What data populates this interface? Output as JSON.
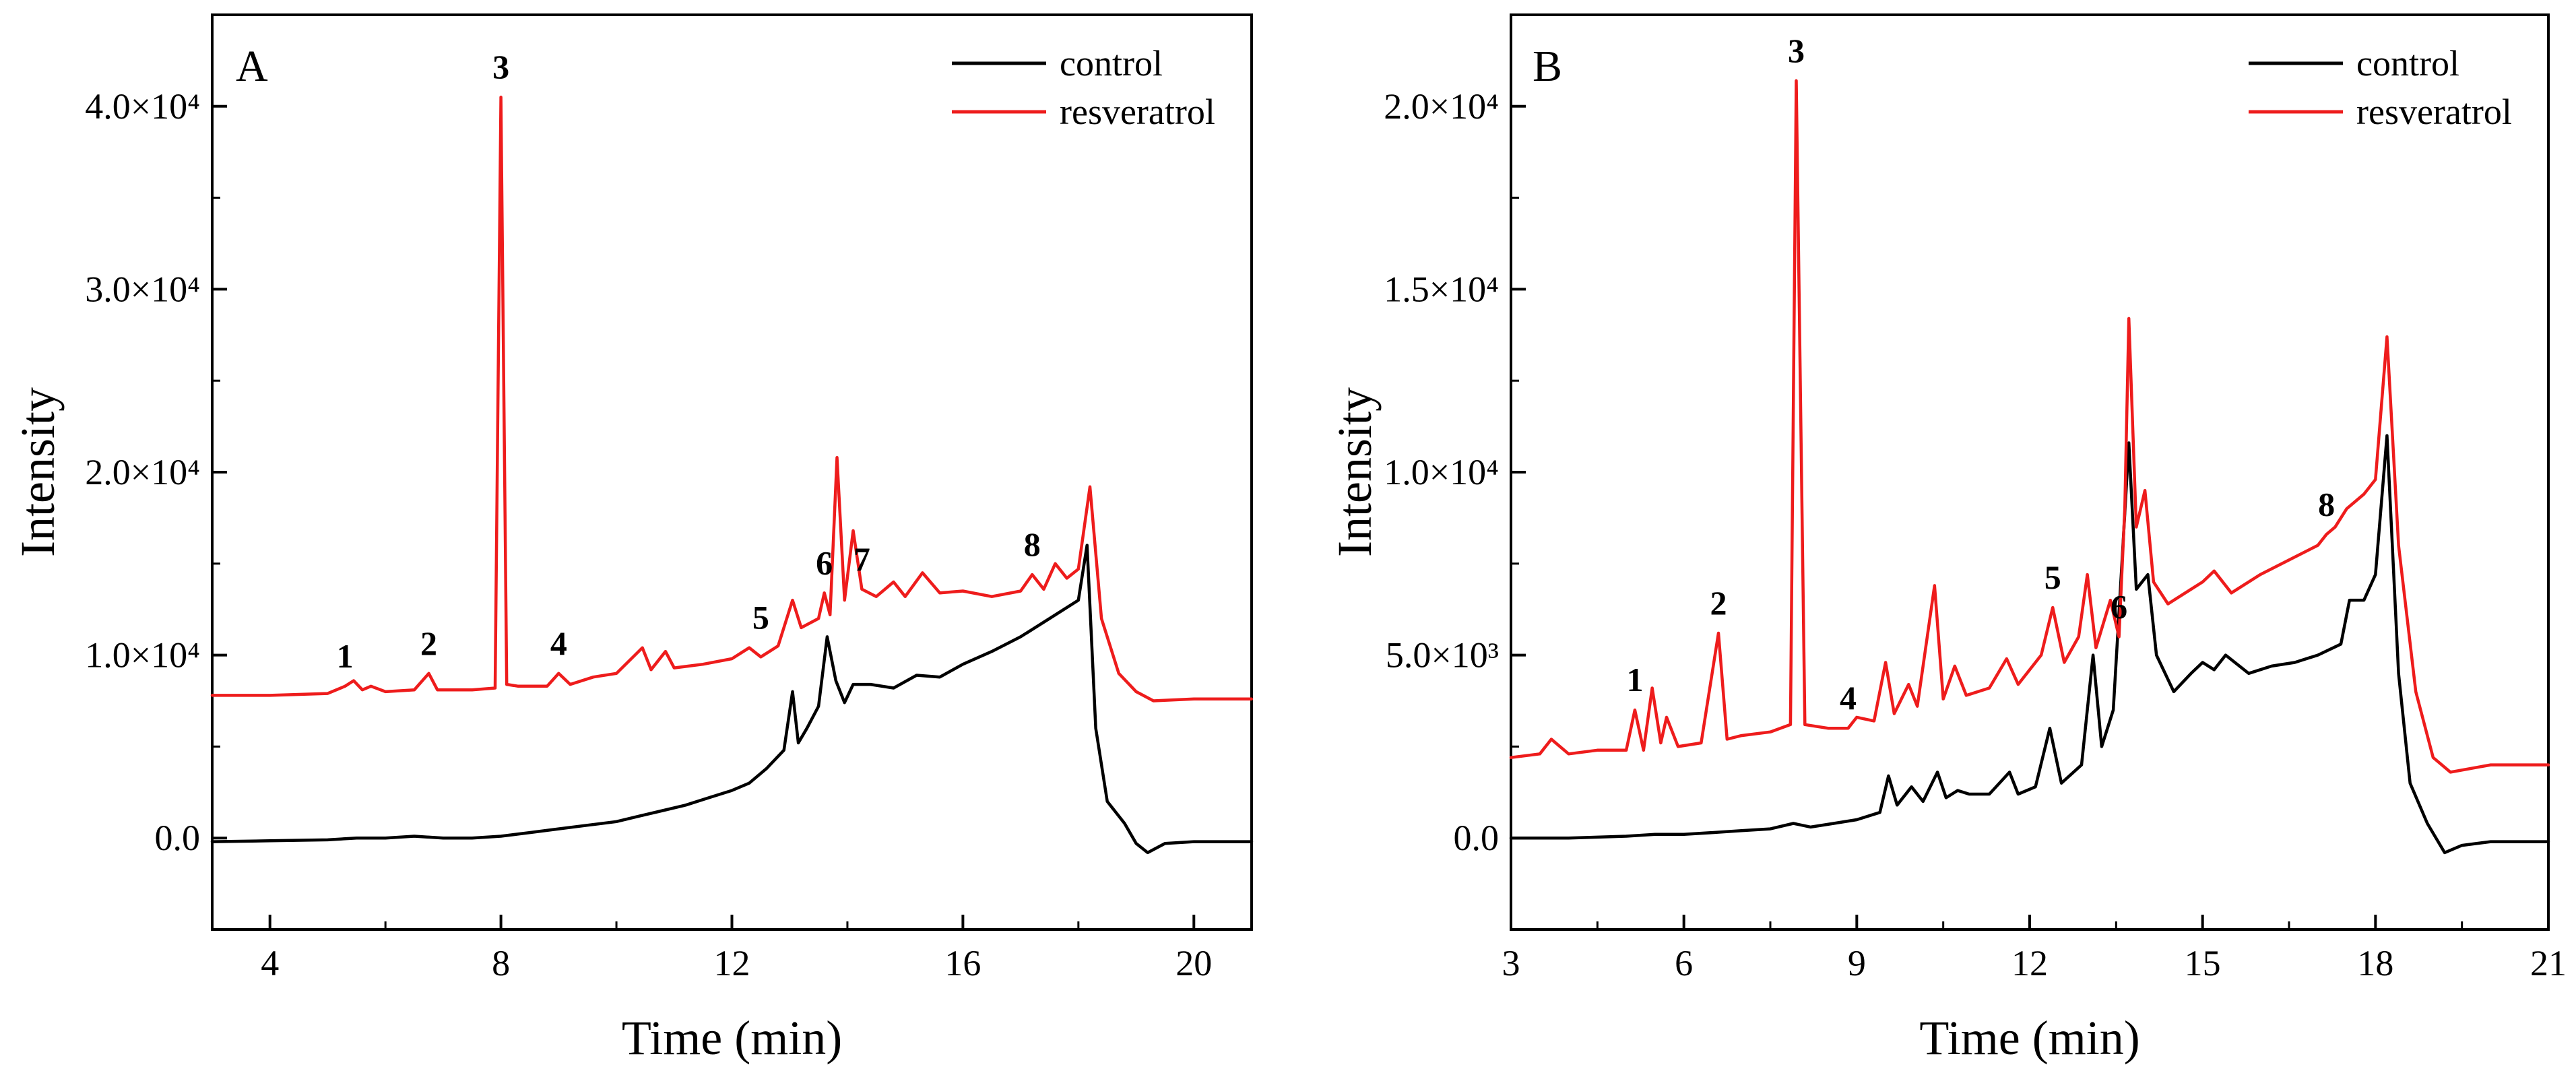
{
  "chart_data": [
    {
      "type": "line",
      "panel_label": "A",
      "xlabel": "Time (min)",
      "ylabel": "Intensity",
      "xlim": [
        3,
        21
      ],
      "ylim": [
        -5000,
        45000
      ],
      "x_ticks": [
        4,
        8,
        12,
        16,
        20
      ],
      "x_tick_labels": [
        "4",
        "8",
        "12",
        "16",
        "20"
      ],
      "y_ticks": [
        0,
        10000,
        20000,
        30000,
        40000
      ],
      "y_tick_labels": [
        "0.0",
        "1.0×10⁴",
        "2.0×10⁴",
        "3.0×10⁴",
        "4.0×10⁴"
      ],
      "legend": {
        "position": "top-right",
        "entries": [
          "control",
          "resveratrol"
        ]
      },
      "series": [
        {
          "name": "control",
          "color": "#000000",
          "x": [
            3,
            4,
            5,
            5.5,
            6,
            6.5,
            7,
            7.5,
            8,
            8.5,
            9,
            9.5,
            10,
            10.4,
            10.8,
            11.2,
            11.6,
            12,
            12.3,
            12.6,
            12.9,
            13.05,
            13.15,
            13.3,
            13.5,
            13.65,
            13.8,
            13.95,
            14.1,
            14.4,
            14.8,
            15.2,
            15.6,
            16,
            16.5,
            17,
            17.5,
            18,
            18.15,
            18.3,
            18.5,
            18.8,
            19,
            19.2,
            19.5,
            20,
            21
          ],
          "y": [
            -200,
            -150,
            -100,
            0,
            0,
            100,
            0,
            0,
            100,
            300,
            500,
            700,
            900,
            1200,
            1500,
            1800,
            2200,
            2600,
            3000,
            3800,
            4800,
            8000,
            5200,
            6000,
            7200,
            11000,
            8600,
            7400,
            8400,
            8400,
            8200,
            8900,
            8800,
            9500,
            10200,
            11000,
            12000,
            13000,
            16000,
            6000,
            2000,
            800,
            -300,
            -800,
            -300,
            -200,
            -200
          ]
        },
        {
          "name": "resveratrol",
          "color": "#ee1c1c",
          "x": [
            3,
            4,
            5,
            5.3,
            5.45,
            5.6,
            5.75,
            6,
            6.5,
            6.75,
            6.9,
            7.5,
            7.9,
            8.0,
            8.1,
            8.3,
            8.8,
            9.0,
            9.2,
            9.6,
            10,
            10.45,
            10.6,
            10.85,
            11,
            11.5,
            12,
            12.3,
            12.5,
            12.8,
            13.05,
            13.2,
            13.5,
            13.6,
            13.7,
            13.82,
            13.95,
            14.1,
            14.25,
            14.5,
            14.8,
            15.0,
            15.3,
            15.6,
            16,
            16.5,
            17,
            17.2,
            17.4,
            17.6,
            17.8,
            18,
            18.2,
            18.4,
            18.7,
            19,
            19.3,
            20,
            21
          ],
          "y": [
            7800,
            7800,
            7900,
            8300,
            8600,
            8100,
            8300,
            8000,
            8100,
            9000,
            8100,
            8100,
            8200,
            40500,
            8400,
            8300,
            8300,
            9000,
            8400,
            8800,
            9000,
            10400,
            9200,
            10200,
            9300,
            9500,
            9800,
            10400,
            9900,
            10500,
            13000,
            11500,
            12000,
            13400,
            12200,
            20800,
            13000,
            16800,
            13600,
            13200,
            14000,
            13200,
            14500,
            13400,
            13500,
            13200,
            13500,
            14400,
            13600,
            15000,
            14200,
            14700,
            19200,
            12000,
            9000,
            8000,
            7500,
            7600,
            7600
          ]
        }
      ],
      "annotations": [
        {
          "text": "1",
          "x": 5.3,
          "y": 8300
        },
        {
          "text": "2",
          "x": 6.75,
          "y": 9000
        },
        {
          "text": "3",
          "x": 8.0,
          "y": 40500
        },
        {
          "text": "4",
          "x": 9.0,
          "y": 9000
        },
        {
          "text": "5",
          "x": 12.5,
          "y": 10400
        },
        {
          "text": "6",
          "x": 13.6,
          "y": 13400
        },
        {
          "text": "7",
          "x": 14.25,
          "y": 13600
        },
        {
          "text": "8",
          "x": 17.2,
          "y": 14400
        }
      ]
    },
    {
      "type": "line",
      "panel_label": "B",
      "xlabel": "Time (min)",
      "ylabel": "Intensity",
      "xlim": [
        3,
        21
      ],
      "ylim": [
        -2500,
        22500
      ],
      "x_ticks": [
        3,
        6,
        9,
        12,
        15,
        18,
        21
      ],
      "x_tick_labels": [
        "3",
        "6",
        "9",
        "12",
        "15",
        "18",
        "21"
      ],
      "y_ticks": [
        0,
        5000,
        10000,
        15000,
        20000
      ],
      "y_tick_labels": [
        "0.0",
        "5.0×10³",
        "1.0×10⁴",
        "1.5×10⁴",
        "2.0×10⁴"
      ],
      "legend": {
        "position": "top-right",
        "entries": [
          "control",
          "resveratrol"
        ]
      },
      "series": [
        {
          "name": "control",
          "color": "#000000",
          "x": [
            3,
            4,
            5,
            5.5,
            6,
            6.5,
            7,
            7.5,
            7.9,
            8.2,
            8.6,
            9,
            9.4,
            9.55,
            9.7,
            9.95,
            10.15,
            10.4,
            10.55,
            10.75,
            10.95,
            11.3,
            11.65,
            11.8,
            12.1,
            12.35,
            12.55,
            12.9,
            13.1,
            13.25,
            13.45,
            13.6,
            13.72,
            13.85,
            14.05,
            14.2,
            14.5,
            14.8,
            15.0,
            15.2,
            15.4,
            15.8,
            16.2,
            16.6,
            17.0,
            17.4,
            17.55,
            17.8,
            18.0,
            18.2,
            18.4,
            18.6,
            18.9,
            19.2,
            19.5,
            20,
            21
          ],
          "y": [
            0,
            0,
            50,
            100,
            100,
            150,
            200,
            250,
            400,
            300,
            400,
            500,
            700,
            1700,
            900,
            1400,
            1000,
            1800,
            1100,
            1300,
            1200,
            1200,
            1800,
            1200,
            1400,
            3000,
            1500,
            2000,
            5000,
            2500,
            3500,
            7500,
            10800,
            6800,
            7200,
            5000,
            4000,
            4500,
            4800,
            4600,
            5000,
            4500,
            4700,
            4800,
            5000,
            5300,
            6500,
            6500,
            7200,
            11000,
            4500,
            1500,
            400,
            -400,
            -200,
            -100,
            -100
          ]
        },
        {
          "name": "resveratrol",
          "color": "#ee1c1c",
          "x": [
            3,
            3.5,
            3.7,
            4,
            4.5,
            5,
            5.15,
            5.3,
            5.45,
            5.6,
            5.7,
            5.9,
            6.3,
            6.6,
            6.75,
            7,
            7.5,
            7.85,
            7.95,
            8.1,
            8.5,
            8.85,
            9.0,
            9.3,
            9.5,
            9.65,
            9.9,
            10.05,
            10.35,
            10.5,
            10.7,
            10.9,
            11.3,
            11.6,
            11.8,
            12.2,
            12.4,
            12.6,
            12.85,
            13.0,
            13.15,
            13.4,
            13.55,
            13.65,
            13.72,
            13.85,
            14.0,
            14.15,
            14.4,
            14.8,
            15.0,
            15.2,
            15.5,
            16.0,
            16.5,
            17.0,
            17.15,
            17.3,
            17.5,
            17.8,
            18.0,
            18.2,
            18.4,
            18.7,
            19.0,
            19.3,
            20,
            21
          ],
          "y": [
            2200,
            2300,
            2700,
            2300,
            2400,
            2400,
            3500,
            2400,
            4100,
            2600,
            3300,
            2500,
            2600,
            5600,
            2700,
            2800,
            2900,
            3100,
            20700,
            3100,
            3000,
            3000,
            3300,
            3200,
            4800,
            3400,
            4200,
            3600,
            6900,
            3800,
            4700,
            3900,
            4100,
            4900,
            4200,
            5000,
            6300,
            4800,
            5500,
            7200,
            5200,
            6500,
            5500,
            9000,
            14200,
            8500,
            9500,
            7000,
            6400,
            6800,
            7000,
            7300,
            6700,
            7200,
            7600,
            8000,
            8300,
            8500,
            9000,
            9400,
            9800,
            13700,
            8000,
            4000,
            2200,
            1800,
            2000,
            2000
          ]
        }
      ],
      "annotations": [
        {
          "text": "1",
          "x": 5.15,
          "y": 3500
        },
        {
          "text": "2",
          "x": 6.6,
          "y": 5600
        },
        {
          "text": "3",
          "x": 7.95,
          "y": 20700
        },
        {
          "text": "4",
          "x": 8.85,
          "y": 3000
        },
        {
          "text": "5",
          "x": 12.4,
          "y": 6300
        },
        {
          "text": "6",
          "x": 13.55,
          "y": 5500
        },
        {
          "text": "8",
          "x": 17.15,
          "y": 8300
        }
      ]
    }
  ]
}
